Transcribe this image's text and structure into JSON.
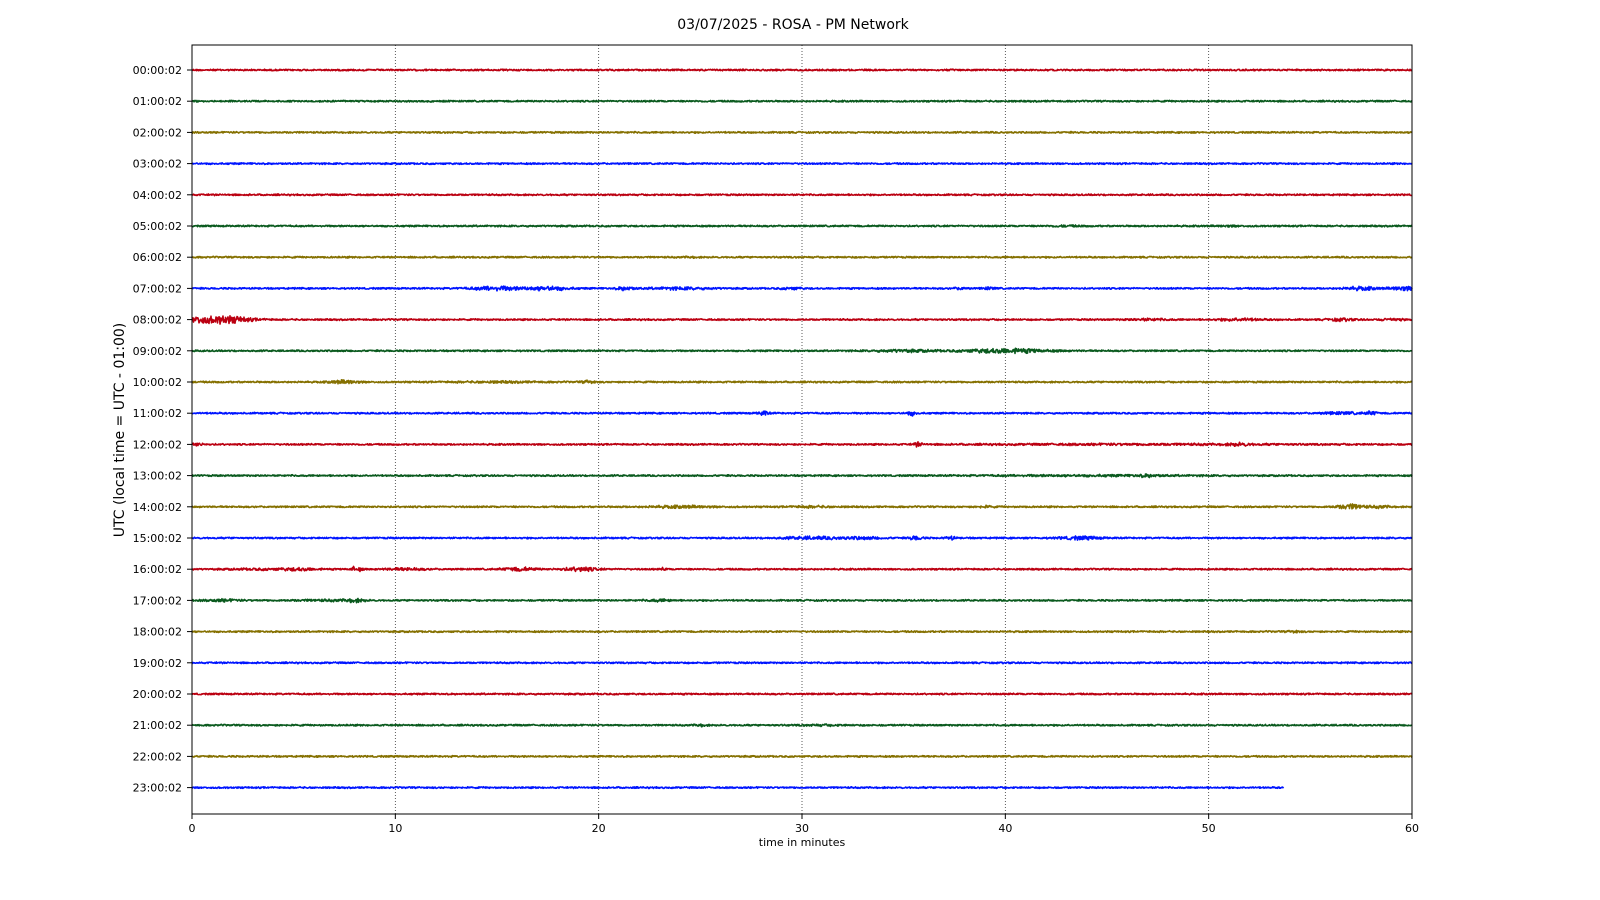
{
  "chart_data": {
    "type": "line",
    "title": "03/07/2025 - ROSA - PM Network",
    "xlabel": "time in minutes",
    "ylabel": "UTC (local time = UTC - 01:00)",
    "xlim": [
      0,
      60
    ],
    "x_ticks": [
      "0",
      "10",
      "20",
      "30",
      "40",
      "50",
      "60"
    ],
    "grid": "vertical dotted lines at 10-minute ticks",
    "series": [
      {
        "name": "00:00:02",
        "color": "#bb0011",
        "end_minute": 60,
        "events": []
      },
      {
        "name": "01:00:02",
        "color": "#0a5a1e",
        "end_minute": 60,
        "events": []
      },
      {
        "name": "02:00:02",
        "color": "#857000",
        "end_minute": 60,
        "events": []
      },
      {
        "name": "03:00:02",
        "color": "#0015ff",
        "end_minute": 60,
        "events": []
      },
      {
        "name": "04:00:02",
        "color": "#bb0011",
        "end_minute": 60,
        "events": []
      },
      {
        "name": "05:00:02",
        "color": "#0a5a1e",
        "end_minute": 60,
        "events": [
          [
            43,
            0.8,
            0.5
          ],
          [
            51,
            0.6,
            0.5
          ]
        ]
      },
      {
        "name": "06:00:02",
        "color": "#857000",
        "end_minute": 60,
        "events": [
          [
            24.5,
            0.3,
            0.5
          ]
        ]
      },
      {
        "name": "07:00:02",
        "color": "#0015ff",
        "end_minute": 60,
        "events": [
          [
            15.0,
            1.2,
            2.0
          ],
          [
            17.5,
            1.0,
            2.0
          ],
          [
            21.3,
            0.4,
            1.8
          ],
          [
            24.0,
            1.5,
            1.0
          ],
          [
            29.5,
            0.5,
            1.0
          ],
          [
            37.8,
            0.3,
            1.0
          ],
          [
            39.2,
            0.3,
            1.0
          ],
          [
            57.5,
            0.8,
            1.5
          ],
          [
            59.6,
            0.6,
            2.0
          ]
        ]
      },
      {
        "name": "08:00:02",
        "color": "#bb0011",
        "end_minute": 60,
        "events": [
          [
            1.5,
            1.3,
            4.0
          ],
          [
            0.3,
            0.4,
            2.0
          ],
          [
            47.0,
            1.0,
            0.8
          ],
          [
            51.5,
            1.0,
            1.2
          ],
          [
            56.5,
            0.6,
            1.2
          ],
          [
            59.0,
            0.5,
            1.0
          ]
        ]
      },
      {
        "name": "09:00:02",
        "color": "#0a5a1e",
        "end_minute": 60,
        "events": [
          [
            40.0,
            2.0,
            2.2
          ],
          [
            35.0,
            1.5,
            1.0
          ]
        ]
      },
      {
        "name": "10:00:02",
        "color": "#857000",
        "end_minute": 60,
        "events": [
          [
            7.5,
            0.7,
            1.6
          ],
          [
            19.5,
            0.3,
            1.4
          ],
          [
            15.0,
            2.0,
            0.6
          ]
        ]
      },
      {
        "name": "11:00:02",
        "color": "#0015ff",
        "end_minute": 60,
        "events": [
          [
            28.1,
            0.25,
            2.2
          ],
          [
            35.4,
            0.25,
            2.0
          ],
          [
            56.5,
            1.0,
            1.0
          ],
          [
            58.0,
            0.3,
            1.5
          ]
        ]
      },
      {
        "name": "12:00:02",
        "color": "#bb0011",
        "end_minute": 60,
        "events": [
          [
            0.2,
            0.3,
            1.5
          ],
          [
            35.7,
            0.2,
            2.0
          ],
          [
            51.5,
            0.5,
            1.2
          ],
          [
            47.0,
            8.0,
            0.5
          ]
        ]
      },
      {
        "name": "13:00:02",
        "color": "#0a5a1e",
        "end_minute": 60,
        "events": [
          [
            47.0,
            0.5,
            1.0
          ],
          [
            44.0,
            5.0,
            0.5
          ]
        ]
      },
      {
        "name": "14:00:02",
        "color": "#857000",
        "end_minute": 60,
        "events": [
          [
            24.0,
            1.5,
            1.0
          ],
          [
            30.5,
            1.0,
            0.7
          ],
          [
            39.0,
            0.4,
            0.8
          ],
          [
            57.0,
            0.7,
            2.5
          ],
          [
            58.5,
            0.5,
            1.0
          ]
        ]
      },
      {
        "name": "15:00:02",
        "color": "#0015ff",
        "end_minute": 60,
        "events": [
          [
            30.5,
            1.5,
            1.2
          ],
          [
            35.6,
            0.3,
            2.0
          ],
          [
            37.3,
            0.2,
            2.0
          ],
          [
            43.7,
            1.0,
            1.5
          ],
          [
            33.0,
            1.0,
            1.0
          ]
        ]
      },
      {
        "name": "16:00:02",
        "color": "#bb0011",
        "end_minute": 60,
        "events": [
          [
            5.3,
            0.8,
            1.2
          ],
          [
            7.9,
            0.1,
            3.0
          ],
          [
            8.3,
            0.1,
            2.0
          ],
          [
            10.5,
            1.0,
            1.0
          ],
          [
            16.1,
            0.8,
            1.6
          ],
          [
            19.1,
            0.8,
            2.0
          ],
          [
            23.2,
            0.1,
            1.5
          ],
          [
            3.5,
            1.5,
            0.6
          ]
        ]
      },
      {
        "name": "17:00:02",
        "color": "#0a5a1e",
        "end_minute": 60,
        "events": [
          [
            1.5,
            0.8,
            1.0
          ],
          [
            8.0,
            0.5,
            1.5
          ],
          [
            23.0,
            0.6,
            1.0
          ],
          [
            6.5,
            1.5,
            0.6
          ]
        ]
      },
      {
        "name": "18:00:02",
        "color": "#857000",
        "end_minute": 60,
        "events": [
          [
            54.2,
            0.3,
            1.0
          ]
        ]
      },
      {
        "name": "19:00:02",
        "color": "#0015ff",
        "end_minute": 60,
        "events": []
      },
      {
        "name": "20:00:02",
        "color": "#bb0011",
        "end_minute": 60,
        "events": []
      },
      {
        "name": "21:00:02",
        "color": "#0a5a1e",
        "end_minute": 60,
        "events": [
          [
            25.0,
            0.3,
            1.0
          ],
          [
            31.0,
            1.0,
            0.5
          ]
        ]
      },
      {
        "name": "22:00:02",
        "color": "#857000",
        "end_minute": 60,
        "events": []
      },
      {
        "name": "23:00:02",
        "color": "#0015ff",
        "end_minute": 53.7,
        "events": []
      }
    ]
  }
}
